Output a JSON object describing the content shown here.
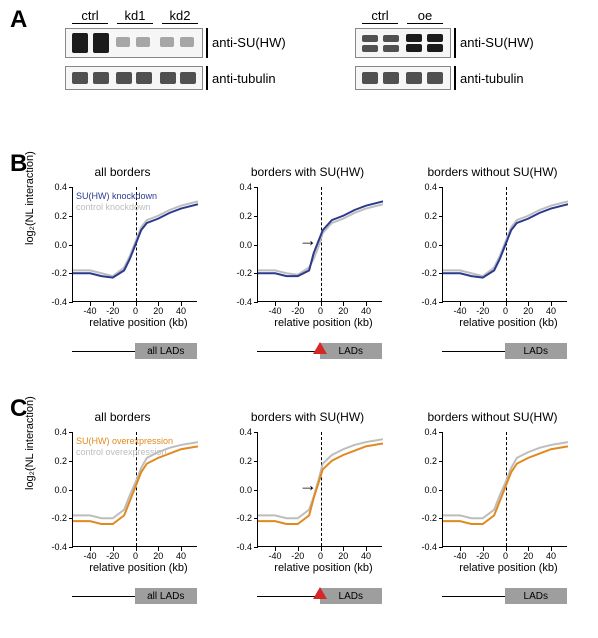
{
  "panelA": {
    "letter": "A",
    "left_block": {
      "lanes": [
        {
          "label": "ctrl",
          "underline": true
        },
        {
          "label": "kd1",
          "underline": true
        },
        {
          "label": "kd2",
          "underline": true
        }
      ],
      "blots": [
        {
          "antibody": "anti-SU(HW)",
          "band_heights": 22,
          "intensities": [
            "strong",
            "strong",
            "faint",
            "faint",
            "faint",
            "faint"
          ]
        },
        {
          "antibody": "anti-tubulin",
          "band_heights": 18,
          "intensities": [
            "med",
            "med",
            "med",
            "med",
            "med",
            "med"
          ]
        }
      ]
    },
    "right_block": {
      "lanes": [
        {
          "label": "ctrl",
          "underline": true
        },
        {
          "label": "oe",
          "underline": true
        }
      ],
      "blots": [
        {
          "antibody": "anti-SU(HW)",
          "band_heights": 22,
          "intensities": [
            "med",
            "med",
            "strong",
            "strong"
          ],
          "doublet": true
        },
        {
          "antibody": "anti-tubulin",
          "band_heights": 18,
          "intensities": [
            "med",
            "med",
            "med",
            "med"
          ]
        }
      ]
    }
  },
  "rowB": {
    "letter": "B",
    "series_color": "#2b3a8f",
    "control_color": "#bdbdbd",
    "legend": {
      "series": "SU(HW) knockdown",
      "control": "control knockdown"
    },
    "ylabel": "log₂(NL interaction)",
    "xlabel": "relative position (kb)",
    "ylim": [
      -0.4,
      0.4
    ],
    "yticks": [
      -0.4,
      -0.2,
      0.0,
      0.2,
      0.4
    ],
    "xlim": [
      -55,
      55
    ],
    "xticks": [
      -40,
      -20,
      0,
      20,
      40
    ],
    "charts": [
      {
        "title": "all borders",
        "lad_label": "all LADs",
        "show_triangle": false,
        "show_arrow": false,
        "show_legend": true,
        "series": [
          [
            -55,
            -0.2
          ],
          [
            -40,
            -0.2
          ],
          [
            -30,
            -0.22
          ],
          [
            -20,
            -0.23
          ],
          [
            -10,
            -0.18
          ],
          [
            -5,
            -0.1
          ],
          [
            0,
            0.0
          ],
          [
            5,
            0.1
          ],
          [
            10,
            0.15
          ],
          [
            20,
            0.18
          ],
          [
            30,
            0.22
          ],
          [
            40,
            0.25
          ],
          [
            55,
            0.28
          ]
        ],
        "control": [
          [
            -55,
            -0.18
          ],
          [
            -40,
            -0.18
          ],
          [
            -30,
            -0.2
          ],
          [
            -20,
            -0.22
          ],
          [
            -10,
            -0.16
          ],
          [
            -5,
            -0.08
          ],
          [
            0,
            0.02
          ],
          [
            5,
            0.12
          ],
          [
            10,
            0.17
          ],
          [
            20,
            0.2
          ],
          [
            30,
            0.24
          ],
          [
            40,
            0.27
          ],
          [
            55,
            0.3
          ]
        ]
      },
      {
        "title": "borders with SU(HW)",
        "lad_label": "LADs",
        "show_triangle": true,
        "show_arrow": true,
        "show_legend": false,
        "series": [
          [
            -55,
            -0.2
          ],
          [
            -40,
            -0.2
          ],
          [
            -30,
            -0.22
          ],
          [
            -20,
            -0.22
          ],
          [
            -10,
            -0.18
          ],
          [
            -6,
            -0.06
          ],
          [
            -2,
            0.02
          ],
          [
            2,
            0.1
          ],
          [
            10,
            0.17
          ],
          [
            20,
            0.2
          ],
          [
            30,
            0.24
          ],
          [
            40,
            0.27
          ],
          [
            55,
            0.3
          ]
        ],
        "control": [
          [
            -55,
            -0.18
          ],
          [
            -40,
            -0.18
          ],
          [
            -30,
            -0.2
          ],
          [
            -20,
            -0.21
          ],
          [
            -10,
            -0.16
          ],
          [
            -6,
            -0.1
          ],
          [
            -2,
            -0.02
          ],
          [
            2,
            0.08
          ],
          [
            10,
            0.15
          ],
          [
            20,
            0.18
          ],
          [
            30,
            0.22
          ],
          [
            40,
            0.25
          ],
          [
            55,
            0.28
          ]
        ]
      },
      {
        "title": "borders without SU(HW)",
        "lad_label": "LADs",
        "show_triangle": false,
        "show_arrow": false,
        "show_legend": false,
        "series": [
          [
            -55,
            -0.2
          ],
          [
            -40,
            -0.2
          ],
          [
            -30,
            -0.22
          ],
          [
            -20,
            -0.23
          ],
          [
            -10,
            -0.18
          ],
          [
            -5,
            -0.1
          ],
          [
            0,
            0.0
          ],
          [
            5,
            0.1
          ],
          [
            10,
            0.15
          ],
          [
            20,
            0.18
          ],
          [
            30,
            0.22
          ],
          [
            40,
            0.25
          ],
          [
            55,
            0.28
          ]
        ],
        "control": [
          [
            -55,
            -0.18
          ],
          [
            -40,
            -0.18
          ],
          [
            -30,
            -0.2
          ],
          [
            -20,
            -0.22
          ],
          [
            -10,
            -0.16
          ],
          [
            -5,
            -0.08
          ],
          [
            0,
            0.02
          ],
          [
            5,
            0.12
          ],
          [
            10,
            0.17
          ],
          [
            20,
            0.2
          ],
          [
            30,
            0.24
          ],
          [
            40,
            0.27
          ],
          [
            55,
            0.3
          ]
        ]
      }
    ]
  },
  "rowC": {
    "letter": "C",
    "series_color": "#e08a1e",
    "control_color": "#bdbdbd",
    "legend": {
      "series": "SU(HW) overexpression",
      "control": "control overexpression"
    },
    "ylabel": "log₂(NL interaction)",
    "xlabel": "relative position (kb)",
    "ylim": [
      -0.4,
      0.4
    ],
    "yticks": [
      -0.4,
      -0.2,
      0.0,
      0.2,
      0.4
    ],
    "xlim": [
      -55,
      55
    ],
    "xticks": [
      -40,
      -20,
      0,
      20,
      40
    ],
    "charts": [
      {
        "title": "all borders",
        "lad_label": "all LADs",
        "show_triangle": false,
        "show_arrow": false,
        "show_legend": true,
        "series": [
          [
            -55,
            -0.22
          ],
          [
            -40,
            -0.22
          ],
          [
            -30,
            -0.24
          ],
          [
            -20,
            -0.24
          ],
          [
            -10,
            -0.18
          ],
          [
            -5,
            -0.08
          ],
          [
            0,
            0.02
          ],
          [
            5,
            0.12
          ],
          [
            10,
            0.18
          ],
          [
            20,
            0.22
          ],
          [
            30,
            0.25
          ],
          [
            40,
            0.28
          ],
          [
            55,
            0.3
          ]
        ],
        "control": [
          [
            -55,
            -0.18
          ],
          [
            -40,
            -0.18
          ],
          [
            -30,
            -0.2
          ],
          [
            -20,
            -0.2
          ],
          [
            -10,
            -0.14
          ],
          [
            -5,
            -0.04
          ],
          [
            0,
            0.05
          ],
          [
            5,
            0.15
          ],
          [
            10,
            0.22
          ],
          [
            20,
            0.26
          ],
          [
            30,
            0.29
          ],
          [
            40,
            0.31
          ],
          [
            55,
            0.33
          ]
        ]
      },
      {
        "title": "borders with SU(HW)",
        "lad_label": "LADs",
        "show_triangle": true,
        "show_arrow": true,
        "show_legend": false,
        "series": [
          [
            -55,
            -0.22
          ],
          [
            -40,
            -0.22
          ],
          [
            -30,
            -0.24
          ],
          [
            -20,
            -0.24
          ],
          [
            -10,
            -0.18
          ],
          [
            -6,
            -0.06
          ],
          [
            -2,
            0.04
          ],
          [
            2,
            0.14
          ],
          [
            10,
            0.2
          ],
          [
            20,
            0.24
          ],
          [
            30,
            0.27
          ],
          [
            40,
            0.3
          ],
          [
            55,
            0.32
          ]
        ],
        "control": [
          [
            -55,
            -0.18
          ],
          [
            -40,
            -0.18
          ],
          [
            -30,
            -0.2
          ],
          [
            -20,
            -0.2
          ],
          [
            -10,
            -0.14
          ],
          [
            -6,
            -0.05
          ],
          [
            -2,
            0.06
          ],
          [
            2,
            0.18
          ],
          [
            10,
            0.24
          ],
          [
            20,
            0.28
          ],
          [
            30,
            0.31
          ],
          [
            40,
            0.33
          ],
          [
            55,
            0.35
          ]
        ]
      },
      {
        "title": "borders without SU(HW)",
        "lad_label": "LADs",
        "show_triangle": false,
        "show_arrow": false,
        "show_legend": false,
        "series": [
          [
            -55,
            -0.22
          ],
          [
            -40,
            -0.22
          ],
          [
            -30,
            -0.24
          ],
          [
            -20,
            -0.24
          ],
          [
            -10,
            -0.18
          ],
          [
            -5,
            -0.08
          ],
          [
            0,
            0.02
          ],
          [
            5,
            0.12
          ],
          [
            10,
            0.18
          ],
          [
            20,
            0.22
          ],
          [
            30,
            0.25
          ],
          [
            40,
            0.28
          ],
          [
            55,
            0.3
          ]
        ],
        "control": [
          [
            -55,
            -0.18
          ],
          [
            -40,
            -0.18
          ],
          [
            -30,
            -0.2
          ],
          [
            -20,
            -0.2
          ],
          [
            -10,
            -0.14
          ],
          [
            -5,
            -0.04
          ],
          [
            0,
            0.05
          ],
          [
            5,
            0.15
          ],
          [
            10,
            0.22
          ],
          [
            20,
            0.26
          ],
          [
            30,
            0.29
          ],
          [
            40,
            0.31
          ],
          [
            55,
            0.33
          ]
        ]
      }
    ]
  },
  "styling": {
    "line_width": 2,
    "control_line_width": 2,
    "background": "#ffffff",
    "axis_color": "#000000",
    "font_family": "Arial",
    "title_fontsize": 12,
    "label_fontsize": 11,
    "tick_fontsize": 9,
    "lad_box_color": "#9e9e9e",
    "triangle_color": "#d62728"
  }
}
